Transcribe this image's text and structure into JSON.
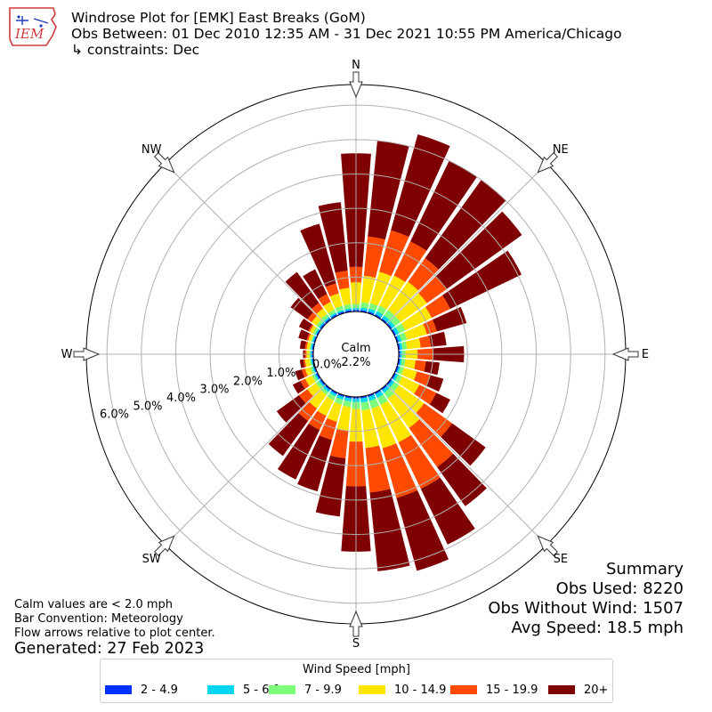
{
  "header": {
    "title": "Windrose Plot for [EMK] East Breaks (GoM)",
    "obs_between": "Obs Between: 01 Dec 2010 12:35 AM - 31 Dec 2021 10:55 PM America/Chicago",
    "constraints": "↳ constraints: Dec",
    "logo_text": "IEM"
  },
  "notes": {
    "calm": "Calm values are < 2.0 mph",
    "bar_convention": "Bar Convention: Meteorology",
    "flow_arrows": "Flow arrows relative to plot center.",
    "generated": "Generated: 27 Feb 2023"
  },
  "summary": {
    "heading": "Summary",
    "obs_used": "Obs Used: 8220",
    "obs_without_wind": "Obs Without Wind: 1507",
    "avg_speed": "Avg Speed: 18.5 mph"
  },
  "legend": {
    "title": "Wind Speed [mph]"
  },
  "chart_data": {
    "type": "windrose",
    "calm_label": "Calm",
    "calm_value": "2.2%",
    "radial_ticks": [
      "0.0%",
      "1.0%",
      "2.0%",
      "3.0%",
      "4.0%",
      "5.0%",
      "6.0%"
    ],
    "radial_max": 6.6,
    "compass_labels": [
      {
        "label": "N",
        "angle": 0
      },
      {
        "label": "NE",
        "angle": 45
      },
      {
        "label": "E",
        "angle": 90
      },
      {
        "label": "SE",
        "angle": 135
      },
      {
        "label": "S",
        "angle": 180
      },
      {
        "label": "SW",
        "angle": 225
      },
      {
        "label": "W",
        "angle": 270
      },
      {
        "label": "NW",
        "angle": 315
      }
    ],
    "bins": [
      {
        "label": "2 - 4.9",
        "color": "#0033ff"
      },
      {
        "label": "5 - 6.9",
        "color": "#00d5f0"
      },
      {
        "label": "7 - 9.9",
        "color": "#7dff7a"
      },
      {
        "label": "10 - 14.9",
        "color": "#ffe600"
      },
      {
        "label": "15 - 19.9",
        "color": "#ff4a00"
      },
      {
        "label": "20+",
        "color": "#7f0000"
      }
    ],
    "directions": [
      {
        "deg": 0,
        "cumulative": [
          0.05,
          0.1,
          0.22,
          0.85,
          1.3,
          4.6
        ]
      },
      {
        "deg": 10,
        "cumulative": [
          0.05,
          0.12,
          0.28,
          1.05,
          2.2,
          5.0
        ]
      },
      {
        "deg": 20,
        "cumulative": [
          0.05,
          0.14,
          0.3,
          1.25,
          2.5,
          5.4
        ]
      },
      {
        "deg": 30,
        "cumulative": [
          0.05,
          0.15,
          0.33,
          1.3,
          2.4,
          5.0
        ]
      },
      {
        "deg": 40,
        "cumulative": [
          0.05,
          0.15,
          0.35,
          1.35,
          2.2,
          5.0
        ]
      },
      {
        "deg": 50,
        "cumulative": [
          0.05,
          0.15,
          0.35,
          1.3,
          2.0,
          4.7
        ]
      },
      {
        "deg": 60,
        "cumulative": [
          0.05,
          0.15,
          0.35,
          1.2,
          1.8,
          4.1
        ]
      },
      {
        "deg": 70,
        "cumulative": [
          0.05,
          0.14,
          0.3,
          0.9,
          1.2,
          2.1
        ]
      },
      {
        "deg": 80,
        "cumulative": [
          0.05,
          0.12,
          0.25,
          0.65,
          0.95,
          1.4
        ]
      },
      {
        "deg": 90,
        "cumulative": [
          0.05,
          0.1,
          0.2,
          0.55,
          1.0,
          1.9
        ]
      },
      {
        "deg": 100,
        "cumulative": [
          0.05,
          0.1,
          0.2,
          0.5,
          0.8,
          1.2
        ]
      },
      {
        "deg": 110,
        "cumulative": [
          0.05,
          0.1,
          0.2,
          0.6,
          1.0,
          1.4
        ]
      },
      {
        "deg": 120,
        "cumulative": [
          0.05,
          0.12,
          0.25,
          0.8,
          1.35,
          1.8
        ]
      },
      {
        "deg": 130,
        "cumulative": [
          0.05,
          0.14,
          0.3,
          1.2,
          2.2,
          3.4
        ]
      },
      {
        "deg": 140,
        "cumulative": [
          0.05,
          0.15,
          0.35,
          1.4,
          2.8,
          4.2
        ]
      },
      {
        "deg": 150,
        "cumulative": [
          0.05,
          0.17,
          0.4,
          1.6,
          3.1,
          4.9
        ]
      },
      {
        "deg": 160,
        "cumulative": [
          0.05,
          0.17,
          0.4,
          1.6,
          3.1,
          5.3
        ]
      },
      {
        "deg": 170,
        "cumulative": [
          0.05,
          0.17,
          0.4,
          1.5,
          2.8,
          5.1
        ]
      },
      {
        "deg": 180,
        "cumulative": [
          0.05,
          0.15,
          0.35,
          1.3,
          2.6,
          4.5
        ]
      },
      {
        "deg": 190,
        "cumulative": [
          0.05,
          0.14,
          0.3,
          1.0,
          1.8,
          3.5
        ]
      },
      {
        "deg": 200,
        "cumulative": [
          0.05,
          0.13,
          0.28,
          0.8,
          1.35,
          2.9
        ]
      },
      {
        "deg": 210,
        "cumulative": [
          0.05,
          0.12,
          0.25,
          0.75,
          1.2,
          2.8
        ]
      },
      {
        "deg": 220,
        "cumulative": [
          0.05,
          0.12,
          0.22,
          0.7,
          1.15,
          2.4
        ]
      },
      {
        "deg": 230,
        "cumulative": [
          0.05,
          0.1,
          0.2,
          0.5,
          0.8,
          1.6
        ]
      },
      {
        "deg": 240,
        "cumulative": [
          0.05,
          0.1,
          0.18,
          0.4,
          0.55,
          0.8
        ]
      },
      {
        "deg": 250,
        "cumulative": [
          0.04,
          0.08,
          0.15,
          0.3,
          0.4,
          0.6
        ]
      },
      {
        "deg": 260,
        "cumulative": [
          0.04,
          0.08,
          0.12,
          0.25,
          0.3,
          0.4
        ]
      },
      {
        "deg": 270,
        "cumulative": [
          0.04,
          0.08,
          0.12,
          0.2,
          0.25,
          0.3
        ]
      },
      {
        "deg": 280,
        "cumulative": [
          0.04,
          0.08,
          0.12,
          0.2,
          0.25,
          0.4
        ]
      },
      {
        "deg": 290,
        "cumulative": [
          0.04,
          0.08,
          0.12,
          0.2,
          0.25,
          0.5
        ]
      },
      {
        "deg": 300,
        "cumulative": [
          0.04,
          0.08,
          0.15,
          0.25,
          0.3,
          0.6
        ]
      },
      {
        "deg": 310,
        "cumulative": [
          0.05,
          0.1,
          0.18,
          0.35,
          0.5,
          1.1
        ]
      },
      {
        "deg": 320,
        "cumulative": [
          0.05,
          0.1,
          0.2,
          0.4,
          0.6,
          1.7
        ]
      },
      {
        "deg": 330,
        "cumulative": [
          0.05,
          0.1,
          0.2,
          0.45,
          0.7,
          1.5
        ]
      },
      {
        "deg": 340,
        "cumulative": [
          0.05,
          0.1,
          0.22,
          0.6,
          0.9,
          2.7
        ]
      },
      {
        "deg": 350,
        "cumulative": [
          0.05,
          0.1,
          0.22,
          0.7,
          1.2,
          3.2
        ]
      }
    ]
  }
}
